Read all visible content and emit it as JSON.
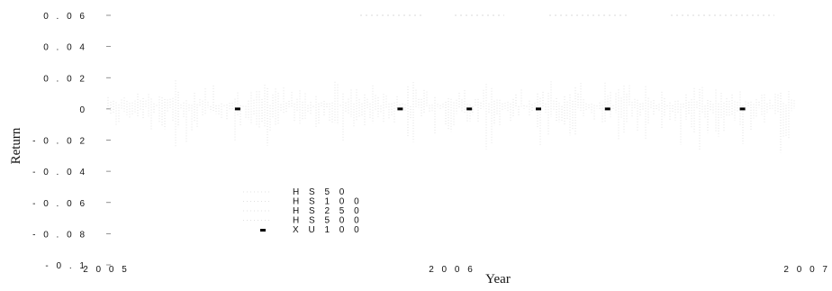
{
  "chart_data": {
    "type": "line",
    "title": "",
    "xlabel": "Year",
    "ylabel": "Return",
    "xlim": [
      2005,
      2007
    ],
    "ylim": [
      -0.1,
      0.06
    ],
    "x_ticks": [
      {
        "value": 2005,
        "label": "2 0 0 5"
      },
      {
        "value": 2006,
        "label": "2 0 0 6"
      },
      {
        "value": 2007,
        "label": "2 0 0 7"
      }
    ],
    "y_ticks": [
      {
        "value": 0.06,
        "label": "0 . 0 6"
      },
      {
        "value": 0.04,
        "label": "0 . 0 4"
      },
      {
        "value": 0.02,
        "label": "0 . 0 2"
      },
      {
        "value": 0,
        "label": "0"
      },
      {
        "value": -0.02,
        "label": "- 0 . 0 2"
      },
      {
        "value": -0.04,
        "label": "- 0 . 0 4"
      },
      {
        "value": -0.06,
        "label": "- 0 . 0 6"
      },
      {
        "value": -0.08,
        "label": "- 0 . 0 8"
      },
      {
        "value": -0.1,
        "label": "- 0 . 1"
      }
    ],
    "legend": {
      "position": "bottom-center",
      "entries": [
        {
          "label": "H S   5 0"
        },
        {
          "label": "H S   1 0 0"
        },
        {
          "label": "H S   2 5 0"
        },
        {
          "label": "H S   5 0 0"
        },
        {
          "label": "X U   1 0 0"
        }
      ]
    },
    "series": [
      {
        "name": "XU 100",
        "color": "#000000",
        "points": [
          {
            "x": 2005.38,
            "y": 0
          },
          {
            "x": 2005.85,
            "y": 0
          },
          {
            "x": 2006.05,
            "y": 0
          },
          {
            "x": 2006.25,
            "y": 0
          },
          {
            "x": 2006.45,
            "y": 0
          },
          {
            "x": 2006.84,
            "y": 0
          }
        ]
      }
    ]
  }
}
